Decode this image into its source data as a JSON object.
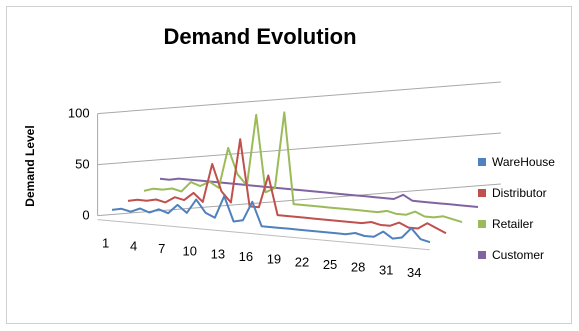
{
  "chart_data": {
    "type": "line",
    "title": "Demand Evolution",
    "xlabel": "",
    "ylabel": "Demand Level",
    "ylim": [
      0,
      100
    ],
    "y_ticks": [
      "0",
      "50",
      "100"
    ],
    "x_tick_labels": [
      "1",
      "4",
      "7",
      "10",
      "13",
      "16",
      "19",
      "22",
      "25",
      "28",
      "31",
      "34"
    ],
    "x": [
      1,
      2,
      3,
      4,
      5,
      6,
      7,
      8,
      9,
      10,
      11,
      12,
      13,
      14,
      15,
      16,
      17,
      18,
      19,
      20,
      21,
      22,
      23,
      24,
      25,
      26,
      27,
      28,
      29,
      30,
      31,
      32,
      33,
      34,
      35
    ],
    "legend_position": "right",
    "grid": true,
    "series": [
      {
        "name": "WareHouse",
        "color": "#4f81bd",
        "values": [
          4,
          6,
          4,
          8,
          5,
          9,
          6,
          15,
          8,
          22,
          10,
          6,
          28,
          4,
          6,
          25,
          2,
          2,
          2,
          2,
          2,
          2,
          2,
          2,
          2,
          2,
          4,
          2,
          2,
          8,
          2,
          4,
          14,
          4,
          2
        ]
      },
      {
        "name": "Distributor",
        "color": "#c0504d",
        "values": [
          4,
          6,
          6,
          8,
          6,
          12,
          10,
          18,
          10,
          48,
          22,
          12,
          75,
          10,
          10,
          42,
          4,
          4,
          4,
          4,
          4,
          4,
          4,
          4,
          4,
          4,
          6,
          4,
          4,
          8,
          4,
          4,
          10,
          6,
          2
        ]
      },
      {
        "name": "Retailer",
        "color": "#9bbb59",
        "values": [
          5,
          8,
          8,
          10,
          8,
          18,
          15,
          20,
          15,
          55,
          30,
          20,
          90,
          15,
          20,
          95,
          6,
          6,
          6,
          6,
          6,
          6,
          6,
          6,
          6,
          6,
          8,
          6,
          6,
          10,
          6,
          6,
          8,
          6,
          4
        ]
      },
      {
        "name": "Customer",
        "color": "#8064a2",
        "values": [
          8,
          8,
          10,
          10,
          10,
          10,
          10,
          10,
          10,
          10,
          10,
          10,
          10,
          10,
          10,
          10,
          10,
          10,
          10,
          10,
          10,
          10,
          10,
          10,
          10,
          10,
          15,
          10,
          10,
          10,
          10,
          10,
          10,
          10,
          10
        ]
      }
    ]
  }
}
